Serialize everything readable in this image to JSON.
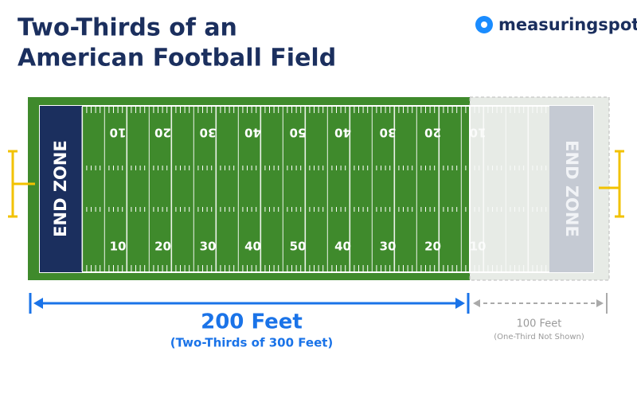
{
  "header": {
    "title_lines": [
      "Two-Thirds of an",
      "American Football Field"
    ],
    "brand": "measuringspot"
  },
  "field": {
    "end_zone_left": "END ZONE",
    "end_zone_right": "END ZONE",
    "yard_numbers_top": [
      10,
      20,
      30,
      40,
      50,
      40,
      30,
      20,
      10
    ],
    "yard_numbers_bottom": [
      10,
      20,
      30,
      40,
      50,
      40,
      30,
      20,
      10
    ]
  },
  "dimensions": {
    "shown_label": "200 Feet",
    "shown_note": "(Two-Thirds of 300 Feet)",
    "hidden_label": "100 Feet",
    "hidden_note": "(One-Third Not Shown)"
  }
}
